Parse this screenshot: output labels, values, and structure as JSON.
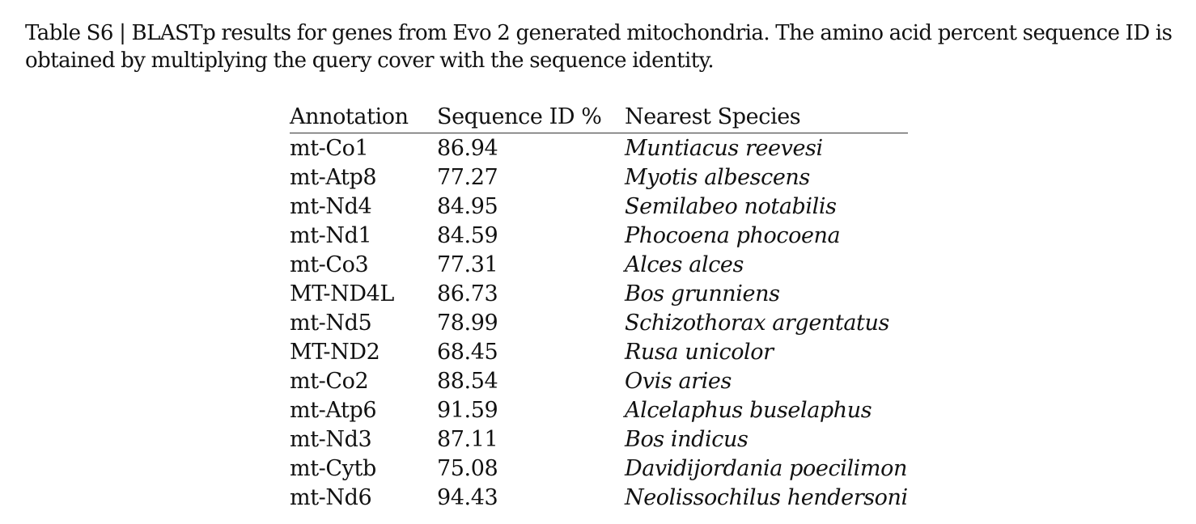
{
  "caption": "Table S6 | BLASTp results for genes from Evo 2 generated mitochondria. The amino acid percent sequence ID is obtained by multiplying the query cover with the sequence identity.",
  "table": {
    "headers": [
      "Annotation",
      "Sequence ID %",
      "Nearest Species"
    ],
    "rows": [
      {
        "annotation": "mt-Co1",
        "sequence_id": "86.94",
        "species": "Muntiacus reevesi"
      },
      {
        "annotation": "mt-Atp8",
        "sequence_id": "77.27",
        "species": "Myotis albescens"
      },
      {
        "annotation": "mt-Nd4",
        "sequence_id": "84.95",
        "species": "Semilabeo notabilis"
      },
      {
        "annotation": "mt-Nd1",
        "sequence_id": "84.59",
        "species": "Phocoena phocoena"
      },
      {
        "annotation": "mt-Co3",
        "sequence_id": "77.31",
        "species": "Alces alces"
      },
      {
        "annotation": "MT-ND4L",
        "sequence_id": "86.73",
        "species": "Bos grunniens"
      },
      {
        "annotation": "mt-Nd5",
        "sequence_id": "78.99",
        "species": "Schizothorax argentatus"
      },
      {
        "annotation": "MT-ND2",
        "sequence_id": "68.45",
        "species": "Rusa unicolor"
      },
      {
        "annotation": "mt-Co2",
        "sequence_id": "88.54",
        "species": "Ovis aries"
      },
      {
        "annotation": "mt-Atp6",
        "sequence_id": "91.59",
        "species": "Alcelaphus buselaphus"
      },
      {
        "annotation": "mt-Nd3",
        "sequence_id": "87.11",
        "species": "Bos indicus"
      },
      {
        "annotation": "mt-Cytb",
        "sequence_id": "75.08",
        "species": "Davidijordania poecilimon"
      },
      {
        "annotation": "mt-Nd6",
        "sequence_id": "94.43",
        "species": "Neolissochilus hendersoni"
      }
    ]
  }
}
